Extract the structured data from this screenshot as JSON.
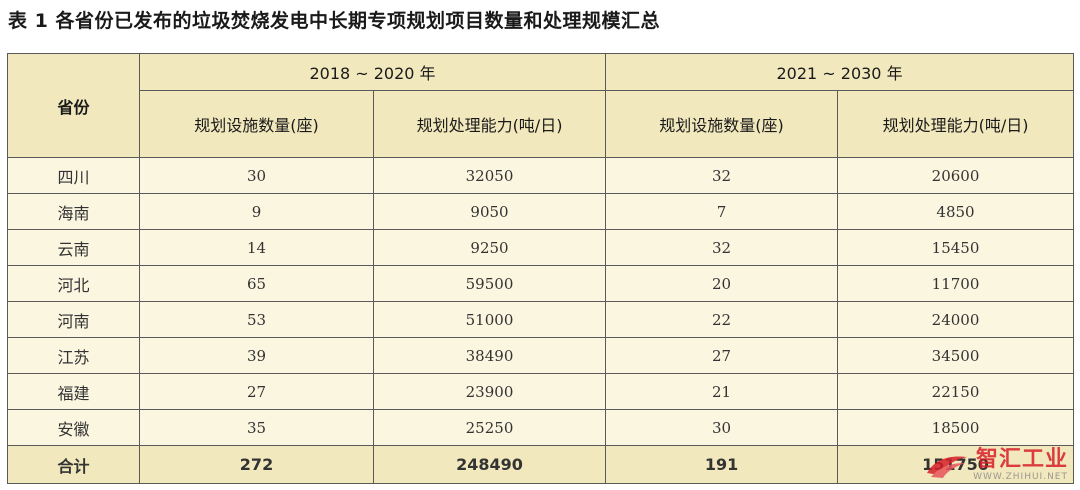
{
  "title": "表 1 各省份已发布的垃圾焚烧发电中长期专项规划项目数量和处理规模汇总",
  "table": {
    "province_header": "省份",
    "periods": [
      "2018 ~ 2020 年",
      "2021 ~ 2030 年"
    ],
    "subheaders": [
      "规划设施数量(座)",
      "规划处理能力(吨/日)",
      "规划设施数量(座)",
      "规划处理能力(吨/日)"
    ],
    "rows": [
      {
        "province": "四川",
        "values": [
          "30",
          "32050",
          "32",
          "20600"
        ]
      },
      {
        "province": "海南",
        "values": [
          "9",
          "9050",
          "7",
          "4850"
        ]
      },
      {
        "province": "云南",
        "values": [
          "14",
          "9250",
          "32",
          "15450"
        ]
      },
      {
        "province": "河北",
        "values": [
          "65",
          "59500",
          "20",
          "11700"
        ]
      },
      {
        "province": "河南",
        "values": [
          "53",
          "51000",
          "22",
          "24000"
        ]
      },
      {
        "province": "江苏",
        "values": [
          "39",
          "38490",
          "27",
          "34500"
        ]
      },
      {
        "province": "福建",
        "values": [
          "27",
          "23900",
          "21",
          "22150"
        ]
      },
      {
        "province": "安徽",
        "values": [
          "35",
          "25250",
          "30",
          "18500"
        ]
      }
    ],
    "total": {
      "label": "合计",
      "values": [
        "272",
        "248490",
        "191",
        "151750"
      ]
    }
  },
  "watermark": {
    "cn": "智汇工业",
    "en": "WWW.ZHIHUI.NET"
  }
}
